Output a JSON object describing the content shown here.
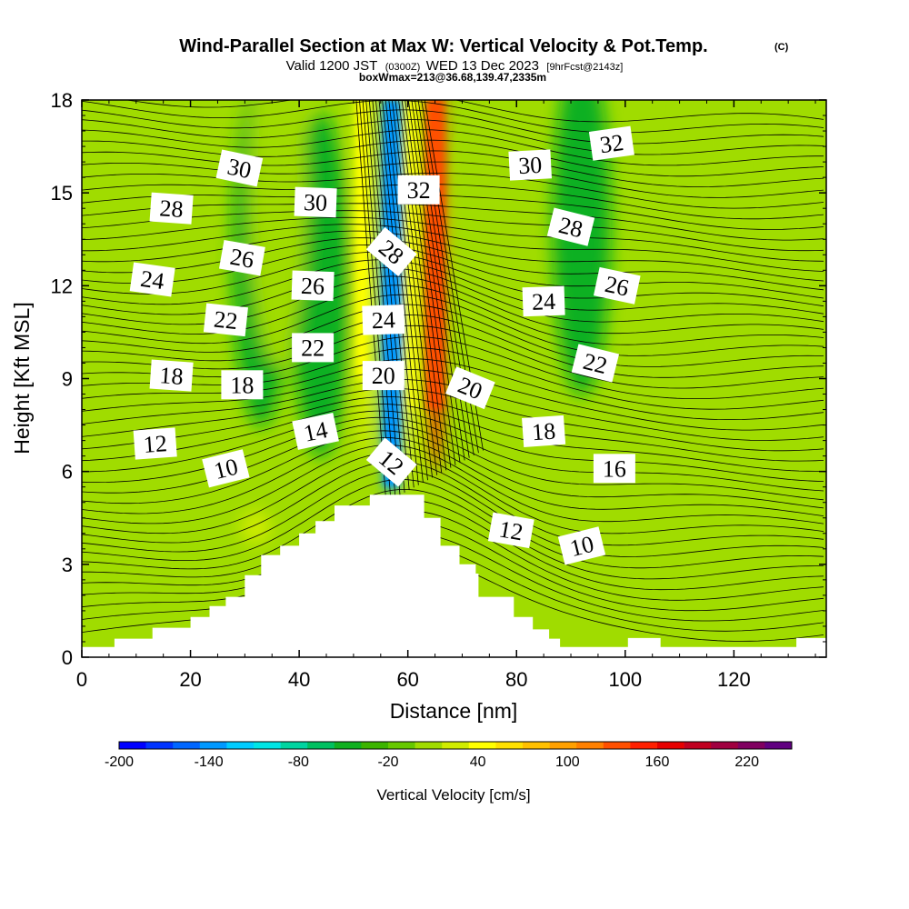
{
  "header": {
    "title": "Wind-Parallel Section at Max W: Vertical Velocity & Pot.Temp.",
    "title_mark": "(C)",
    "subtitle_prefix": "Valid 1200 JST",
    "subtitle_utc": "(0300Z)",
    "subtitle_main": "WED 13 Dec 2023",
    "subtitle_forecast": "[9hrFcst@2143z]",
    "box_line": "boxWmax=213@36.68,139.47,2335m"
  },
  "chart_data": {
    "type": "heatmap",
    "xlabel": "Distance [nm]",
    "ylabel": "Height [Kft MSL]",
    "xlim": [
      0,
      137
    ],
    "ylim": [
      0,
      18
    ],
    "x_ticks": [
      "0",
      "20",
      "40",
      "60",
      "80",
      "100",
      "120"
    ],
    "y_ticks": [
      "0",
      "3",
      "6",
      "9",
      "12",
      "15",
      "18"
    ],
    "colorbar": {
      "title": "Vertical Velocity [cm/s]",
      "min": -200,
      "max": 250,
      "step": 20,
      "tick_labels": [
        "-200",
        "-140",
        "-80",
        "-20",
        "40",
        "100",
        "160",
        "220"
      ],
      "tick_values": [
        -200,
        -140,
        -80,
        -20,
        40,
        100,
        160,
        220
      ],
      "colors": [
        "#0000ff",
        "#0033ff",
        "#0066ff",
        "#0099ff",
        "#00ccff",
        "#00e5e5",
        "#00d4a0",
        "#00c060",
        "#10b020",
        "#3cb400",
        "#66c800",
        "#a0dc00",
        "#d0ec00",
        "#ffff00",
        "#ffe000",
        "#ffc000",
        "#ffa000",
        "#ff8000",
        "#ff5000",
        "#ff2000",
        "#e60000",
        "#c00020",
        "#a00040",
        "#800060",
        "#600080"
      ]
    },
    "terrain_profile": {
      "x": [
        0,
        6,
        6,
        13,
        13,
        20,
        20,
        23.5,
        23.5,
        26.5,
        26.5,
        30,
        30,
        33,
        33,
        36.5,
        36.5,
        40,
        40,
        43,
        43,
        46.5,
        46.5,
        53,
        53,
        63,
        63,
        66,
        66,
        69.5,
        69.5,
        72.5,
        72.5,
        73,
        73,
        79.5,
        79.5,
        83,
        83,
        86,
        86,
        88,
        88,
        100.5,
        100.5,
        106.5,
        106.5,
        131.5,
        131.5,
        137
      ],
      "y": [
        0.33,
        0.33,
        0.6,
        0.6,
        0.95,
        0.95,
        1.3,
        1.3,
        1.65,
        1.65,
        1.95,
        1.95,
        2.65,
        2.65,
        3.3,
        3.3,
        3.6,
        3.6,
        4.0,
        4.0,
        4.4,
        4.4,
        4.9,
        4.9,
        5.25,
        5.25,
        4.5,
        4.5,
        3.6,
        3.6,
        3.0,
        3.0,
        2.7,
        2.7,
        1.95,
        1.95,
        1.3,
        1.3,
        0.9,
        0.9,
        0.6,
        0.6,
        0.33,
        0.33,
        0.62,
        0.62,
        0.33,
        0.33,
        0.62,
        0.62
      ]
    },
    "w_features": [
      {
        "x": 57,
        "y": 12,
        "value": -140
      },
      {
        "x": 65,
        "y": 13,
        "value": 180
      },
      {
        "x": 52,
        "y": 14,
        "value": 60
      },
      {
        "x": 60.5,
        "y": 13,
        "value": 60
      },
      {
        "x": 44,
        "y": 12,
        "value": -40
      },
      {
        "x": 33,
        "y": 13,
        "value": -40
      },
      {
        "x": 92,
        "y": 14,
        "value": -40
      },
      {
        "x": 115,
        "y": 14,
        "value": 20
      },
      {
        "x": 75,
        "y": 12,
        "value": 20
      },
      {
        "x": 32,
        "y": 4.2,
        "value": 40
      },
      {
        "x": 36,
        "y": 15,
        "value": 20
      }
    ],
    "theta_labels": [
      {
        "text": "30",
        "x": 29,
        "y": 15.8,
        "angle": 12
      },
      {
        "text": "30",
        "x": 43,
        "y": 14.7,
        "angle": 2
      },
      {
        "text": "32",
        "x": 62,
        "y": 15.1,
        "angle": 0
      },
      {
        "text": "30",
        "x": 82.5,
        "y": 15.9,
        "angle": -3
      },
      {
        "text": "32",
        "x": 97.5,
        "y": 16.6,
        "angle": -8
      },
      {
        "text": "28",
        "x": 16.5,
        "y": 14.5,
        "angle": 4
      },
      {
        "text": "28",
        "x": 57,
        "y": 13.1,
        "angle": 40
      },
      {
        "text": "28",
        "x": 90,
        "y": 13.9,
        "angle": 14
      },
      {
        "text": "26",
        "x": 29.5,
        "y": 12.9,
        "angle": 10
      },
      {
        "text": "26",
        "x": 42.5,
        "y": 12,
        "angle": 2
      },
      {
        "text": "26",
        "x": 98.5,
        "y": 12,
        "angle": 12
      },
      {
        "text": "24",
        "x": 13,
        "y": 12.2,
        "angle": 8
      },
      {
        "text": "24",
        "x": 55.5,
        "y": 10.9,
        "angle": -2
      },
      {
        "text": "24",
        "x": 85,
        "y": 11.5,
        "angle": -2
      },
      {
        "text": "22",
        "x": 26.5,
        "y": 10.9,
        "angle": 6
      },
      {
        "text": "22",
        "x": 42.5,
        "y": 10,
        "angle": 0
      },
      {
        "text": "22",
        "x": 94.5,
        "y": 9.5,
        "angle": 14
      },
      {
        "text": "18",
        "x": 16.5,
        "y": 9.1,
        "angle": 4
      },
      {
        "text": "18",
        "x": 29.5,
        "y": 8.8,
        "angle": 0
      },
      {
        "text": "20",
        "x": 55.5,
        "y": 9.1,
        "angle": 0
      },
      {
        "text": "20",
        "x": 71.5,
        "y": 8.7,
        "angle": 22
      },
      {
        "text": "18",
        "x": 85,
        "y": 7.3,
        "angle": -4
      },
      {
        "text": "12",
        "x": 13.5,
        "y": 6.9,
        "angle": -4
      },
      {
        "text": "14",
        "x": 43,
        "y": 7.3,
        "angle": -12
      },
      {
        "text": "12",
        "x": 57,
        "y": 6.3,
        "angle": 40
      },
      {
        "text": "16",
        "x": 98,
        "y": 6.1,
        "angle": 0
      },
      {
        "text": "10",
        "x": 26.5,
        "y": 6.1,
        "angle": -14
      },
      {
        "text": "12",
        "x": 79,
        "y": 4.1,
        "angle": 10
      },
      {
        "text": "10",
        "x": 92,
        "y": 3.6,
        "angle": -14
      }
    ]
  }
}
